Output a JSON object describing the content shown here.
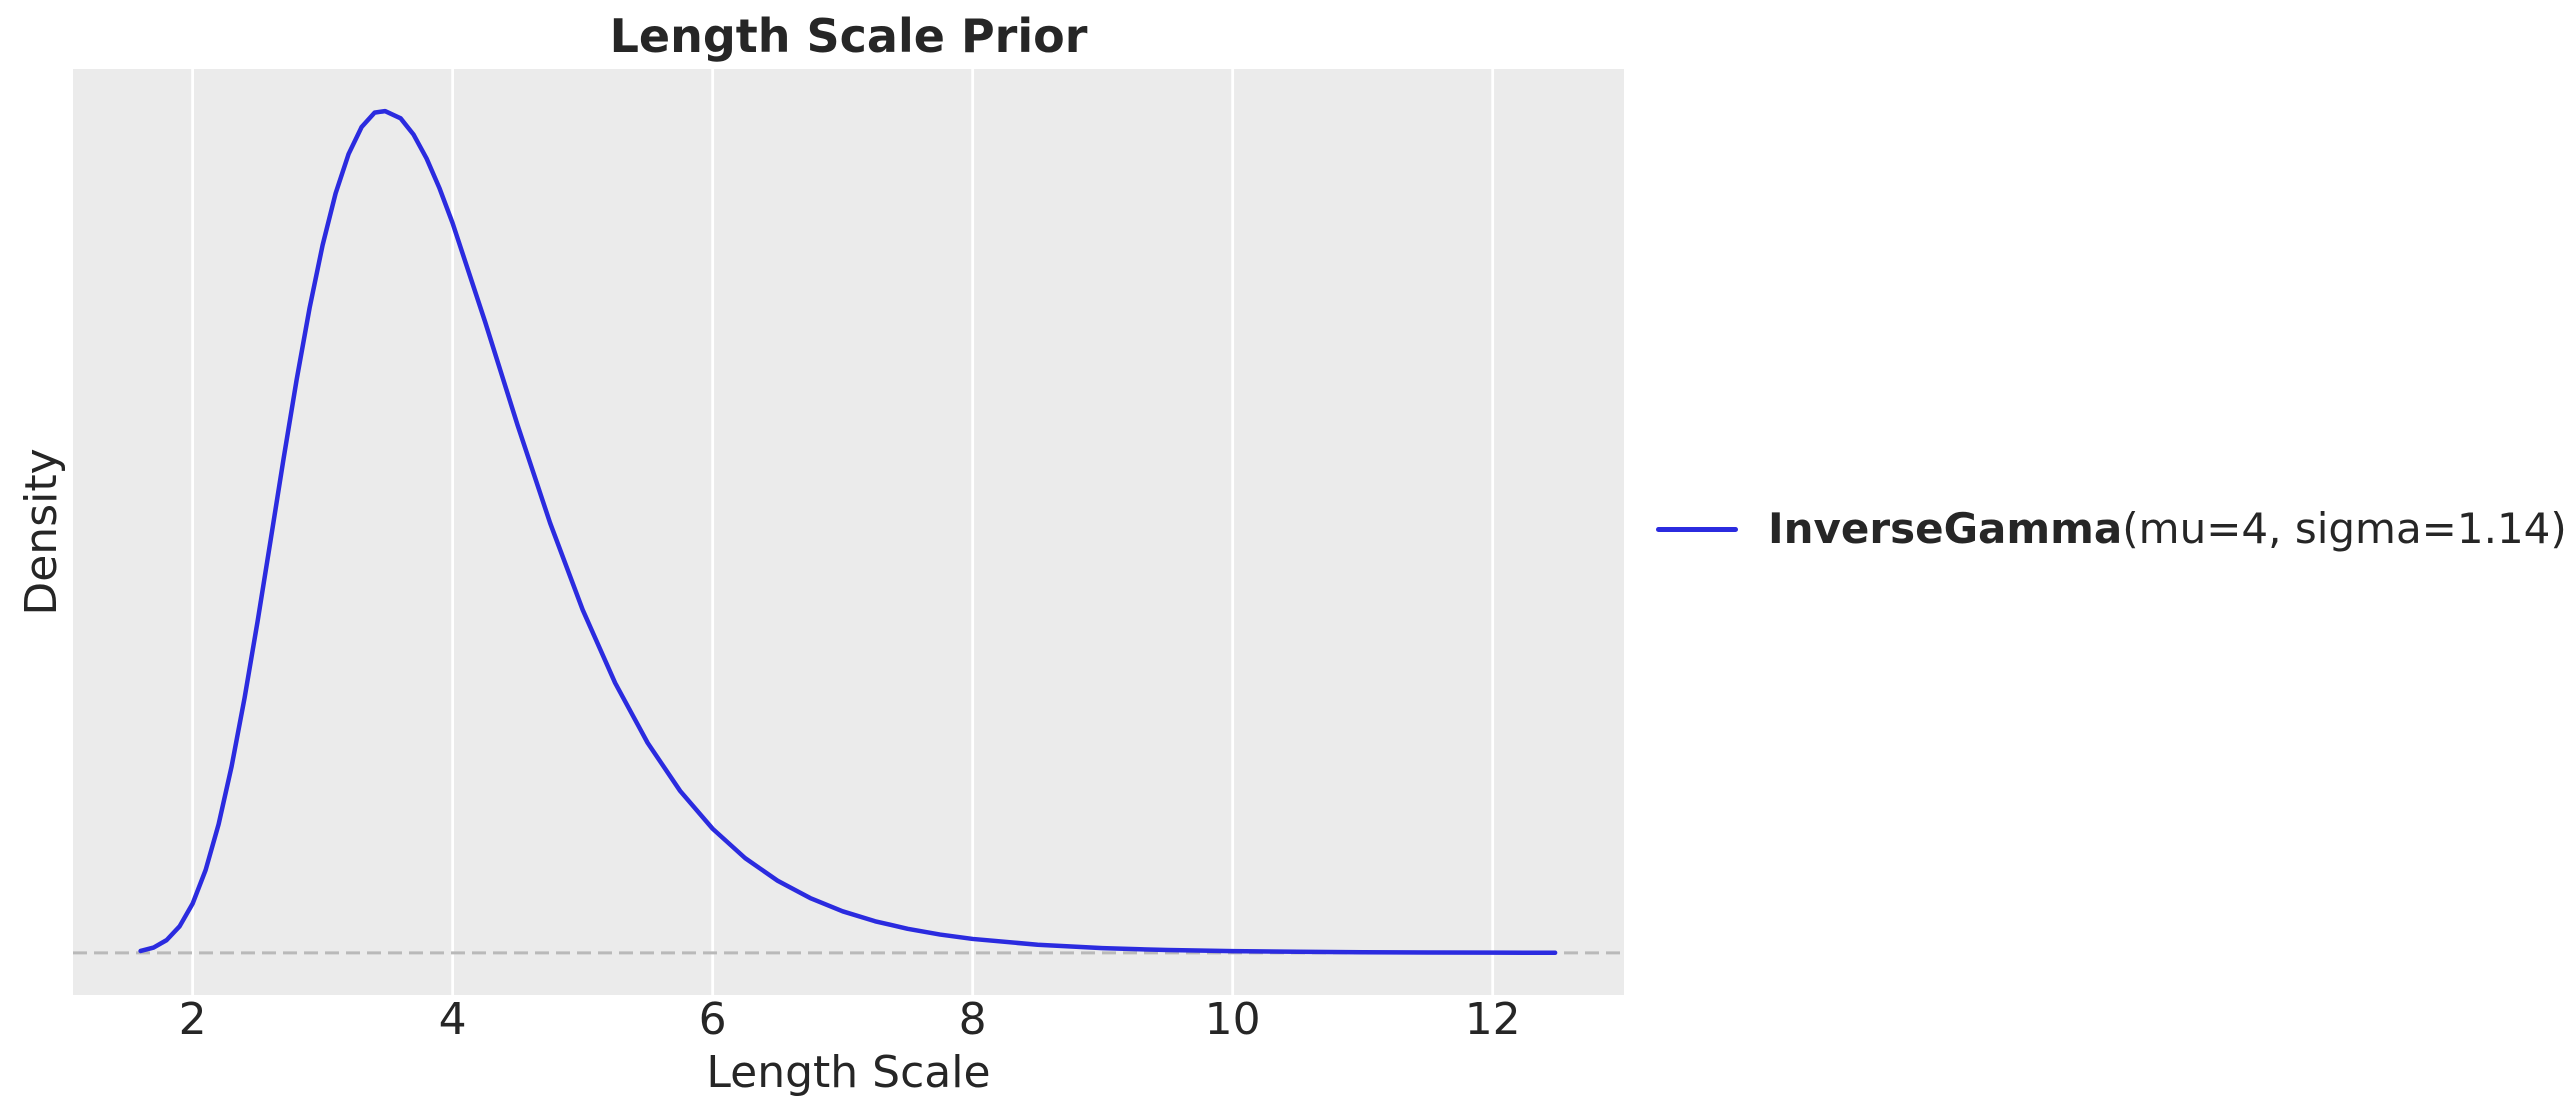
{
  "figure": {
    "title": "Length Scale Prior",
    "xlabel": "Length Scale",
    "ylabel": "Density",
    "legend": {
      "label_bold": "InverseGamma",
      "label_rest": "(mu=4, sigma=1.14)"
    },
    "colors": {
      "curve": "#2b2bdf",
      "axes_background": "#ebebeb",
      "gridline": "#ffffff",
      "zero_line": "#b9b9b9",
      "text": "#262626"
    }
  },
  "chart_data": {
    "type": "line",
    "title": "Length Scale Prior",
    "xlabel": "Length Scale",
    "ylabel": "Density",
    "legend_entries": [
      "InverseGamma(mu=4, sigma=1.14)"
    ],
    "legend_position": "center-right outside axes",
    "grid": "vertical gridlines only, white on gray background",
    "x_ticks": [
      2,
      4,
      6,
      8,
      10,
      12
    ],
    "y_ticks": [],
    "xlim": [
      1.08,
      13.01
    ],
    "ylim": [
      -0.05,
      1.05
    ],
    "zero_line": {
      "y": 0,
      "style": "dashed"
    },
    "series": [
      {
        "name": "InverseGamma(mu=4, sigma=1.14)",
        "distribution": "InverseGamma",
        "params_shown": {
          "mu": 4,
          "sigma": 1.14
        },
        "peak": {
          "x": 3.48,
          "density_normalized": 1.0
        },
        "x": [
          1.6,
          1.7,
          1.8,
          1.9,
          2.0,
          2.1,
          2.2,
          2.3,
          2.4,
          2.5,
          2.6,
          2.7,
          2.8,
          2.9,
          3.0,
          3.1,
          3.2,
          3.3,
          3.4,
          3.48,
          3.6,
          3.7,
          3.8,
          3.9,
          4.0,
          4.25,
          4.5,
          4.75,
          5.0,
          5.25,
          5.5,
          5.75,
          6.0,
          6.25,
          6.5,
          6.75,
          7.0,
          7.25,
          7.5,
          7.75,
          8.0,
          8.5,
          9.0,
          9.5,
          10.0,
          10.5,
          11.0,
          11.5,
          12.0,
          12.48
        ],
        "density_normalized": [
          0.0023,
          0.0064,
          0.0152,
          0.0316,
          0.0585,
          0.0984,
          0.1528,
          0.2216,
          0.3031,
          0.394,
          0.4903,
          0.5874,
          0.6807,
          0.7663,
          0.8409,
          0.9023,
          0.9491,
          0.9811,
          0.9982,
          1.0,
          0.9914,
          0.972,
          0.9436,
          0.908,
          0.8668,
          0.7496,
          0.6267,
          0.5106,
          0.4077,
          0.3207,
          0.2495,
          0.1924,
          0.1475,
          0.1126,
          0.0857,
          0.0652,
          0.0494,
          0.0376,
          0.0286,
          0.0218,
          0.0166,
          0.0097,
          0.0057,
          0.0034,
          0.0021,
          0.0013,
          0.0008,
          0.0005,
          0.0003,
          0.0002
        ]
      }
    ]
  }
}
